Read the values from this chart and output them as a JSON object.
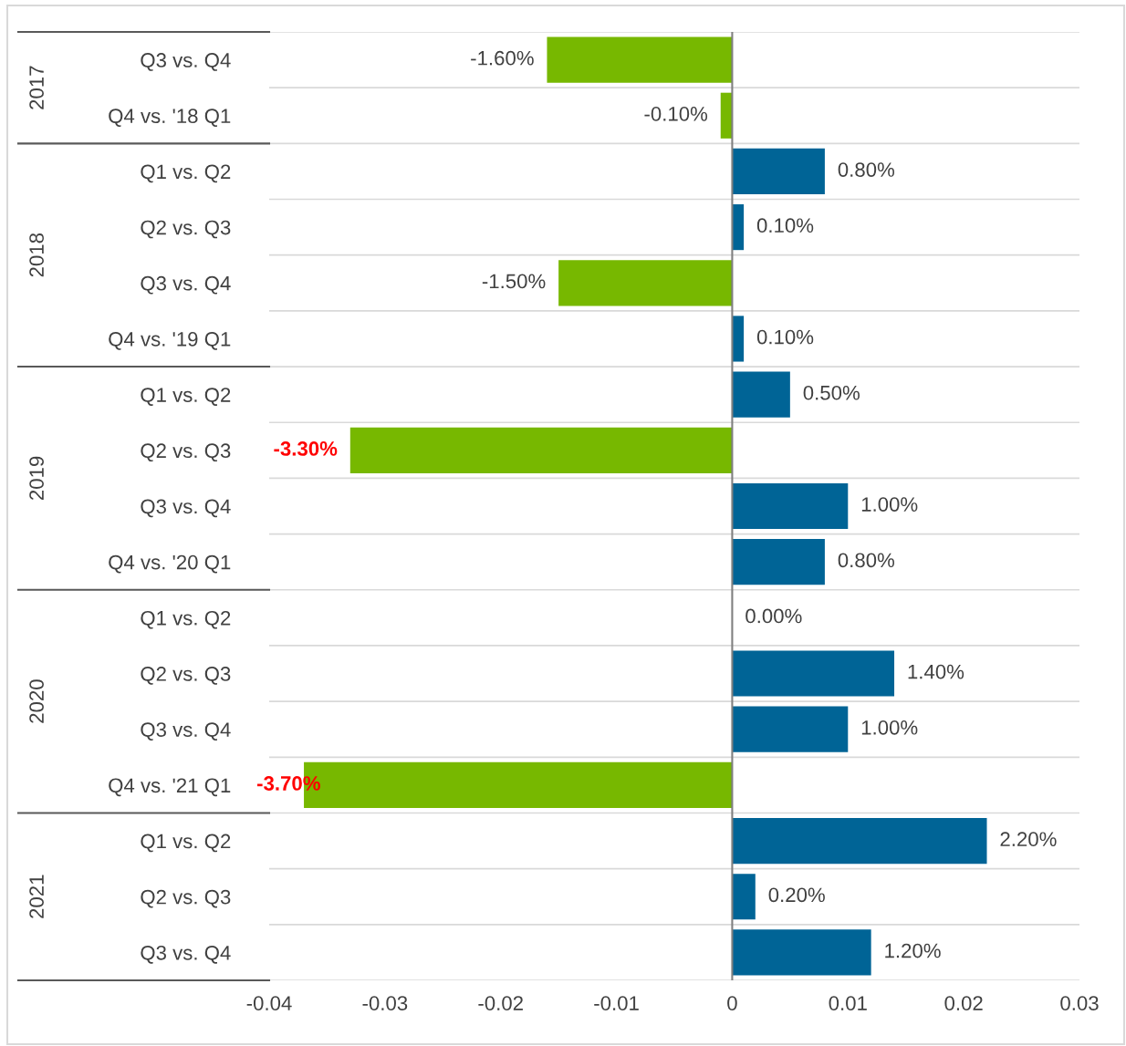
{
  "chart_data": {
    "type": "bar",
    "orientation": "horizontal",
    "categories": [
      "Q3 vs. Q4",
      "Q4 vs. '18 Q1",
      "Q1 vs. Q2",
      "Q2 vs. Q3",
      "Q3 vs. Q4",
      "Q4 vs. '19 Q1",
      "Q1 vs. Q2",
      "Q2 vs. Q3",
      "Q3 vs. Q4",
      "Q4 vs. '20 Q1",
      "Q1 vs. Q2",
      "Q2 vs. Q3",
      "Q3 vs. Q4",
      "Q4 vs. '21 Q1",
      "Q1 vs. Q2",
      "Q2 vs. Q3",
      "Q3 vs. Q4"
    ],
    "values": [
      -0.016,
      -0.001,
      0.008,
      0.001,
      -0.015,
      0.001,
      0.005,
      -0.033,
      0.01,
      0.008,
      0.0,
      0.014,
      0.01,
      -0.037,
      0.022,
      0.002,
      0.012
    ],
    "colors": [
      "#77b800",
      "#77b800",
      "#006496",
      "#006496",
      "#77b800",
      "#006496",
      "#006496",
      "#77b800",
      "#006496",
      "#006496",
      "#006496",
      "#006496",
      "#006496",
      "#77b800",
      "#006496",
      "#006496",
      "#006496"
    ],
    "value_labels": [
      "-1.60%",
      "-0.10%",
      "0.80%",
      "0.10%",
      "-1.50%",
      "0.10%",
      "0.50%",
      "-3.30%",
      "1.00%",
      "0.80%",
      "0.00%",
      "1.40%",
      "1.00%",
      "-3.70%",
      "2.20%",
      "0.20%",
      "1.20%"
    ],
    "annotations": [
      "2017",
      "2018",
      "2019",
      "2020",
      "2021"
    ],
    "xlim": [
      -0.04,
      0.03
    ],
    "xticks": [
      -0.04,
      -0.03,
      -0.02,
      -0.01,
      0,
      0.01,
      0.02,
      0.03
    ],
    "grid": false,
    "legend": false
  }
}
